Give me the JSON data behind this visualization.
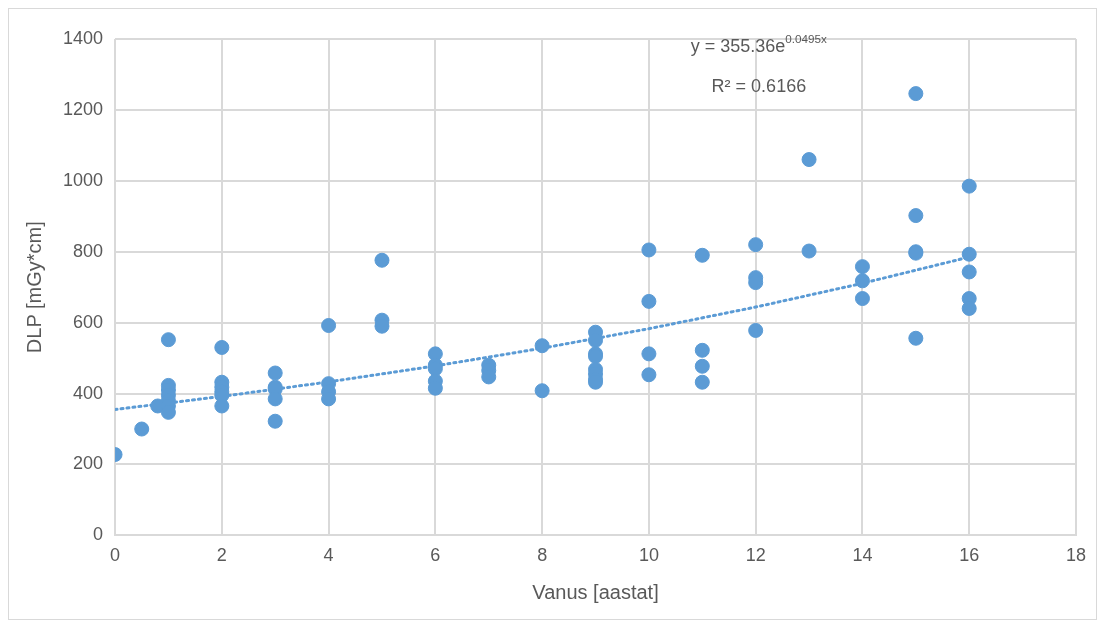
{
  "chart_data": {
    "type": "scatter",
    "xlabel": "Vanus [aastat]",
    "ylabel": "DLP [mGy*cm]",
    "xlim": [
      0,
      18
    ],
    "xticks": [
      0,
      2,
      4,
      6,
      8,
      10,
      12,
      14,
      16,
      18
    ],
    "ylim": [
      0,
      1400
    ],
    "yticks": [
      0,
      200,
      400,
      600,
      800,
      1000,
      1200,
      1400
    ],
    "grid": true,
    "legend": false,
    "marker": "circle",
    "annotations": [
      "y = 355.36e$^{0.0495x}$",
      "R² = 0.6166"
    ],
    "series": [
      {
        "color": "#5b9bd5",
        "x": [
          0,
          0.5,
          0.8,
          1,
          1,
          1,
          1,
          1,
          1,
          1,
          2,
          2,
          2,
          2,
          2,
          2,
          3,
          3,
          3,
          3,
          3,
          4,
          4,
          4,
          4,
          5,
          5,
          5,
          6,
          6,
          6,
          6,
          6,
          7,
          7,
          7,
          8,
          8,
          9,
          9,
          9,
          9,
          9,
          9,
          9,
          9,
          10,
          10,
          10,
          10,
          11,
          11,
          11,
          11,
          12,
          12,
          12,
          12,
          13,
          13,
          14,
          14,
          14,
          15,
          15,
          15,
          15,
          15,
          16,
          16,
          16,
          16,
          16
        ],
        "values": [
          228,
          300,
          365,
          552,
          423,
          410,
          395,
          380,
          365,
          347,
          530,
          432,
          418,
          405,
          395,
          365,
          458,
          418,
          413,
          385,
          322,
          592,
          428,
          405,
          385,
          776,
          607,
          590,
          512,
          480,
          470,
          435,
          415,
          480,
          465,
          447,
          535,
          408,
          573,
          550,
          512,
          505,
          468,
          455,
          440,
          432,
          805,
          660,
          512,
          453,
          790,
          522,
          477,
          432,
          820,
          727,
          713,
          578,
          1060,
          802,
          758,
          718,
          668,
          1246,
          902,
          800,
          796,
          556,
          985,
          793,
          743,
          668,
          640
        ]
      },
      {
        "type": "line",
        "color": "#5b9bd5",
        "line_style": "dotted",
        "marker": "none",
        "x": [
          0,
          2,
          4,
          6,
          8,
          10,
          12,
          14,
          16
        ],
        "values": [
          355,
          392,
          433,
          478,
          528,
          583,
          644,
          711,
          785
        ]
      }
    ]
  }
}
